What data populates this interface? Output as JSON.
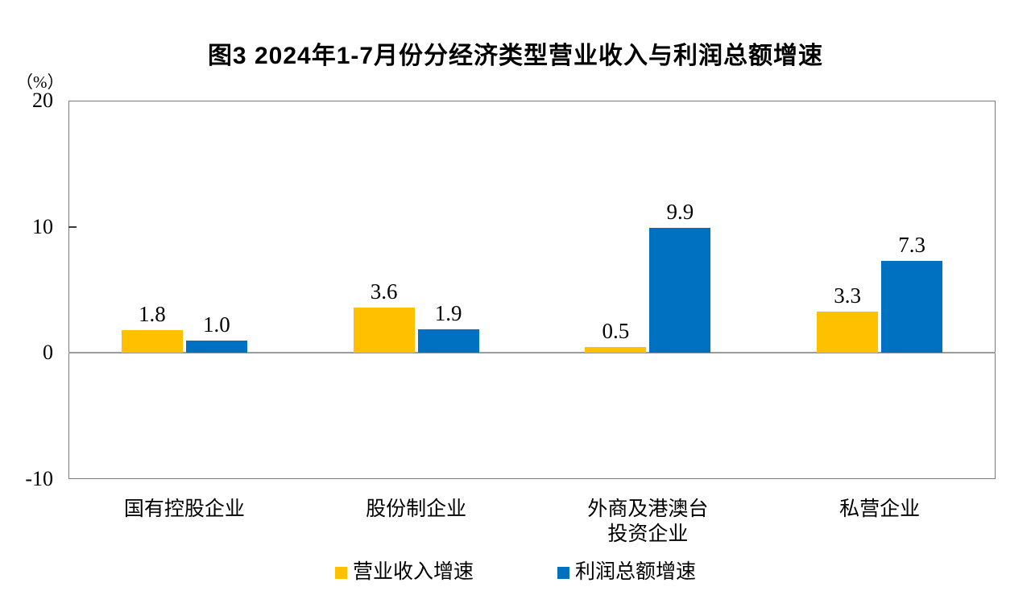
{
  "chart_data": {
    "type": "bar",
    "title": "图3 2024年1-7月份分经济类型营业收入与利润总额增速",
    "ylabel": "（%）",
    "xlabel": "",
    "ylim": [
      -10,
      20
    ],
    "yticks": [
      20,
      10,
      0,
      -10
    ],
    "grid": "zero-line-only",
    "legend_position": "bottom-center",
    "categories": [
      "国有控股企业",
      "股份制企业",
      "外商及港澳台\n投资企业",
      "私营企业"
    ],
    "series": [
      {
        "name": "营业收入增速",
        "color": "#FFC000",
        "values": [
          1.8,
          3.6,
          0.5,
          3.3
        ]
      },
      {
        "name": "利润总额增速",
        "color": "#0070C0",
        "values": [
          1.0,
          1.9,
          9.9,
          7.3
        ]
      }
    ],
    "colors": {
      "plot_border": "#7a7a7a",
      "zero_line": "#9c9c9c",
      "text": "#000000"
    }
  }
}
